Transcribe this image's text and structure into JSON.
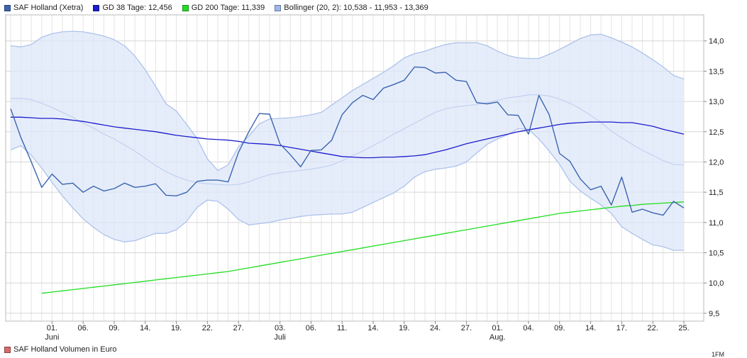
{
  "legend": {
    "price": {
      "label": "SAF Holland (Xetra)",
      "color": "#3a64b0"
    },
    "ma38": {
      "label": "GD 38 Tage: 12,456",
      "color": "#1c1ccc"
    },
    "ma200": {
      "label": "GD 200 Tage: 11,339",
      "color": "#22dd22"
    },
    "bollinger": {
      "label": "Bollinger (20, 2): 10,538 - 11,953 - 13,369",
      "color": "#9fb7e8"
    }
  },
  "volume_legend": {
    "label": "SAF Holland Volumen in Euro",
    "color": "#d86b6b"
  },
  "volume_tick": "1FM",
  "chart_data": {
    "type": "line",
    "title": "",
    "xlabel": "",
    "ylabel": "",
    "ylim": [
      9.37,
      14.43
    ],
    "grid": true,
    "legend_placement": "top-left",
    "y_ticks": [
      {
        "v": 9.5,
        "label": "9,5"
      },
      {
        "v": 10.0,
        "label": "10,0"
      },
      {
        "v": 10.5,
        "label": "10,5"
      },
      {
        "v": 11.0,
        "label": "11,0"
      },
      {
        "v": 11.5,
        "label": "11,5"
      },
      {
        "v": 12.0,
        "label": "12,0"
      },
      {
        "v": 12.5,
        "label": "12,5"
      },
      {
        "v": 13.0,
        "label": "13,0"
      },
      {
        "v": 13.5,
        "label": "13,5"
      },
      {
        "v": 14.0,
        "label": "14,0"
      }
    ],
    "x_ticks": [
      {
        "i": 4,
        "label": "01."
      },
      {
        "i": 7,
        "label": "06."
      },
      {
        "i": 10,
        "label": "09."
      },
      {
        "i": 13,
        "label": "14."
      },
      {
        "i": 16,
        "label": "19."
      },
      {
        "i": 19,
        "label": "22."
      },
      {
        "i": 22,
        "label": "27."
      },
      {
        "i": 26,
        "label": "03."
      },
      {
        "i": 29,
        "label": "06."
      },
      {
        "i": 32,
        "label": "11."
      },
      {
        "i": 35,
        "label": "14."
      },
      {
        "i": 38,
        "label": "19."
      },
      {
        "i": 41,
        "label": "24."
      },
      {
        "i": 44,
        "label": "27."
      },
      {
        "i": 47,
        "label": "01."
      },
      {
        "i": 50,
        "label": "04."
      },
      {
        "i": 53,
        "label": "09."
      },
      {
        "i": 56,
        "label": "14."
      },
      {
        "i": 59,
        "label": "17."
      },
      {
        "i": 62,
        "label": "22."
      },
      {
        "i": 65,
        "label": "25."
      }
    ],
    "month_labels": [
      {
        "i": 4,
        "label": "Juni"
      },
      {
        "i": 26,
        "label": "Juli"
      },
      {
        "i": 47,
        "label": "Aug."
      }
    ],
    "series": [
      {
        "name": "SAF Holland (Xetra)",
        "key": "price",
        "values": [
          12.88,
          12.4,
          12.0,
          11.58,
          11.8,
          11.63,
          11.65,
          11.5,
          11.6,
          11.52,
          11.56,
          11.65,
          11.58,
          11.6,
          11.64,
          11.45,
          11.44,
          11.5,
          11.68,
          11.7,
          11.7,
          11.67,
          12.16,
          12.5,
          12.8,
          12.79,
          12.3,
          12.12,
          11.92,
          12.19,
          12.2,
          12.36,
          12.78,
          12.98,
          13.1,
          13.03,
          13.22,
          13.28,
          13.35,
          13.57,
          13.56,
          13.47,
          13.48,
          13.35,
          13.33,
          12.98,
          12.96,
          12.99,
          12.78,
          12.77,
          12.46,
          13.1,
          12.78,
          12.14,
          12.01,
          11.72,
          11.54,
          11.6,
          11.29,
          11.75,
          11.17,
          11.22,
          11.16,
          11.12,
          11.35,
          11.24
        ]
      },
      {
        "name": "GD 38 Tage: 12,456",
        "key": "ma38",
        "values": [
          12.74,
          12.74,
          12.73,
          12.72,
          12.72,
          12.71,
          12.69,
          12.67,
          12.64,
          12.61,
          12.58,
          12.56,
          12.54,
          12.52,
          12.5,
          12.47,
          12.44,
          12.42,
          12.4,
          12.38,
          12.37,
          12.36,
          12.34,
          12.31,
          12.3,
          12.29,
          12.27,
          12.24,
          12.21,
          12.18,
          12.15,
          12.12,
          12.09,
          12.08,
          12.07,
          12.07,
          12.08,
          12.08,
          12.09,
          12.1,
          12.12,
          12.16,
          12.2,
          12.25,
          12.3,
          12.34,
          12.38,
          12.42,
          12.46,
          12.5,
          12.53,
          12.56,
          12.59,
          12.62,
          12.64,
          12.65,
          12.66,
          12.66,
          12.66,
          12.65,
          12.65,
          12.62,
          12.59,
          12.54,
          12.5,
          12.46
        ]
      },
      {
        "name": "GD 200 Tage: 11,339",
        "key": "ma200",
        "values": [
          null,
          null,
          null,
          9.83,
          9.85,
          9.87,
          9.89,
          9.91,
          9.93,
          9.95,
          9.97,
          9.99,
          10.01,
          10.03,
          10.05,
          10.07,
          10.09,
          10.11,
          10.13,
          10.15,
          10.17,
          10.19,
          10.22,
          10.25,
          10.28,
          10.31,
          10.34,
          10.37,
          10.4,
          10.43,
          10.46,
          10.49,
          10.52,
          10.55,
          10.58,
          10.61,
          10.64,
          10.67,
          10.7,
          10.73,
          10.76,
          10.79,
          10.82,
          10.85,
          10.88,
          10.91,
          10.94,
          10.97,
          11.0,
          11.03,
          11.06,
          11.09,
          11.12,
          11.15,
          11.17,
          11.19,
          11.21,
          11.23,
          11.25,
          11.27,
          11.28,
          11.3,
          11.31,
          11.32,
          11.33,
          11.34
        ]
      },
      {
        "name": "Bollinger (20, 2): 10,538 - 11,953 - 13,369",
        "key": "bollinger",
        "values": [
          13.05,
          13.05,
          13.03,
          12.97,
          12.9,
          12.82,
          12.74,
          12.64,
          12.56,
          12.46,
          12.38,
          12.28,
          12.18,
          12.06,
          11.94,
          11.84,
          11.76,
          11.7,
          11.66,
          11.64,
          11.63,
          11.62,
          11.63,
          11.67,
          11.74,
          11.79,
          11.82,
          11.84,
          11.86,
          11.88,
          11.91,
          11.95,
          12.02,
          12.1,
          12.18,
          12.27,
          12.36,
          12.46,
          12.55,
          12.64,
          12.73,
          12.82,
          12.88,
          12.91,
          12.93,
          12.95,
          12.98,
          13.02,
          13.06,
          13.08,
          13.11,
          13.11,
          13.09,
          13.04,
          12.97,
          12.88,
          12.77,
          12.65,
          12.51,
          12.4,
          12.29,
          12.19,
          12.11,
          12.02,
          11.96,
          11.95
        ],
        "upper": [
          13.92,
          13.9,
          13.94,
          14.06,
          14.12,
          14.15,
          14.16,
          14.15,
          14.12,
          14.08,
          14.02,
          13.92,
          13.75,
          13.52,
          13.25,
          12.96,
          12.84,
          12.62,
          12.39,
          12.05,
          11.86,
          11.95,
          12.25,
          12.43,
          12.63,
          12.71,
          12.72,
          12.73,
          12.75,
          12.78,
          12.82,
          12.94,
          13.06,
          13.18,
          13.28,
          13.38,
          13.48,
          13.59,
          13.72,
          13.79,
          13.83,
          13.89,
          13.94,
          13.97,
          13.97,
          13.97,
          13.92,
          13.83,
          13.76,
          13.72,
          13.71,
          13.71,
          13.78,
          13.86,
          13.95,
          14.04,
          14.1,
          14.11,
          14.05,
          13.98,
          13.9,
          13.8,
          13.69,
          13.57,
          13.43,
          13.37
        ],
        "lower": [
          12.2,
          12.27,
          12.11,
          11.9,
          11.66,
          11.44,
          11.24,
          11.06,
          10.92,
          10.8,
          10.72,
          10.68,
          10.7,
          10.76,
          10.82,
          10.82,
          10.88,
          11.02,
          11.25,
          11.37,
          11.35,
          11.22,
          11.05,
          10.96,
          10.98,
          11.0,
          11.04,
          11.07,
          11.1,
          11.12,
          11.13,
          11.14,
          11.14,
          11.17,
          11.25,
          11.33,
          11.41,
          11.49,
          11.6,
          11.75,
          11.84,
          11.88,
          11.9,
          11.93,
          12.0,
          12.15,
          12.29,
          12.38,
          12.45,
          12.55,
          12.54,
          12.38,
          12.18,
          11.96,
          11.68,
          11.52,
          11.4,
          11.29,
          11.15,
          10.93,
          10.82,
          10.72,
          10.63,
          10.6,
          10.54,
          10.54
        ]
      }
    ]
  }
}
